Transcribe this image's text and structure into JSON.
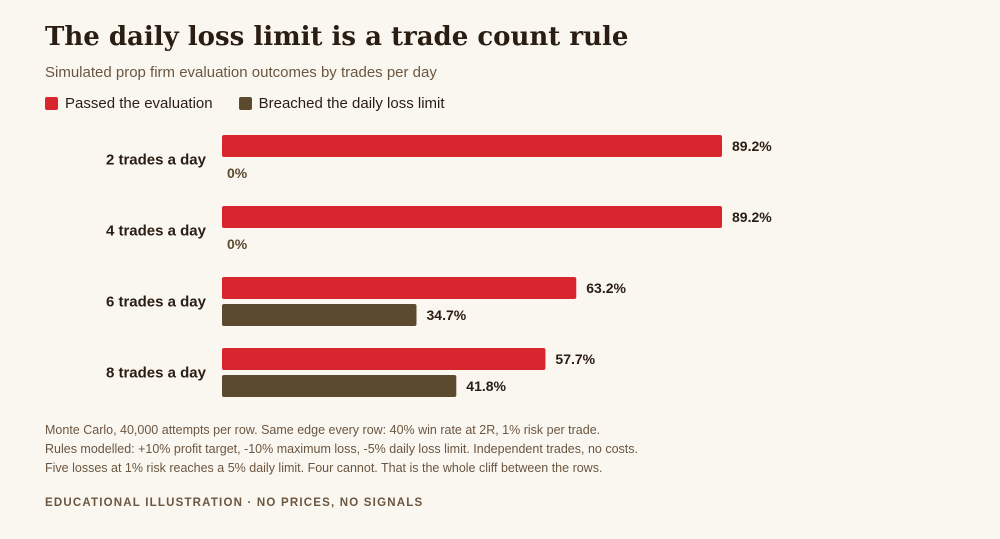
{
  "title": "The daily loss limit is a trade count rule",
  "subtitle": "Simulated prop firm evaluation outcomes by trades per day",
  "colors": {
    "passed": "#d7262e",
    "breached": "#5c4a2e"
  },
  "chart_data": {
    "type": "bar",
    "orientation": "horizontal",
    "title": "The daily loss limit is a trade count rule",
    "subtitle": "Simulated prop firm evaluation outcomes by trades per day",
    "categories": [
      "2 trades a day",
      "4 trades a day",
      "6 trades a day",
      "8 trades a day"
    ],
    "series": [
      {
        "name": "Passed the evaluation",
        "color": "#d7262e",
        "values": [
          89.2,
          89.2,
          63.2,
          57.7
        ],
        "labels": [
          "89.2%",
          "89.2%",
          "63.2%",
          "57.7%"
        ]
      },
      {
        "name": "Breached the daily loss limit",
        "color": "#5c4a2e",
        "values": [
          0,
          0,
          34.7,
          41.8
        ],
        "labels": [
          "0%",
          "0%",
          "34.7%",
          "41.8%"
        ]
      }
    ],
    "xlim": [
      0,
      100
    ],
    "unit": "%",
    "grid": false,
    "legend": "top-left"
  },
  "notes": [
    "Monte Carlo, 40,000 attempts per row. Same edge every row: 40% win rate at 2R, 1% risk per trade.",
    "Rules modelled: +10% profit target, -10% maximum loss, -5% daily loss limit. Independent trades, no costs.",
    "Five losses at 1% risk reaches a 5% daily limit. Four cannot. That is the whole cliff between the rows."
  ],
  "footer": "EDUCATIONAL ILLUSTRATION · NO PRICES, NO SIGNALS"
}
